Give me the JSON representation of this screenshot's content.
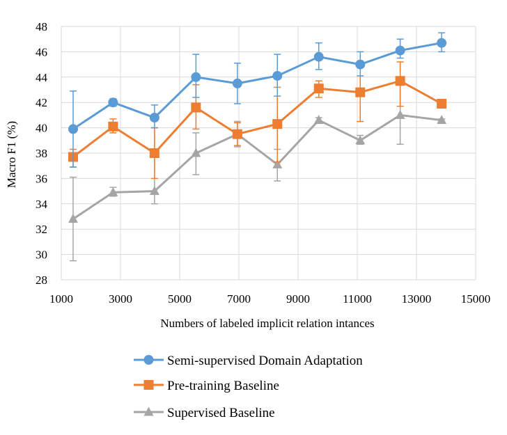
{
  "chart_data": {
    "type": "line",
    "title": "",
    "xlabel": "Numbers of labeled implicit relation intances",
    "ylabel": "Macro F1 (%)",
    "xlim": [
      1000,
      15000
    ],
    "ylim": [
      28,
      48
    ],
    "xticks": [
      1000,
      3000,
      5000,
      7000,
      9000,
      11000,
      13000,
      15000
    ],
    "yticks": [
      28,
      30,
      32,
      34,
      36,
      38,
      40,
      42,
      44,
      46,
      48
    ],
    "grid": true,
    "legend_position": "bottom",
    "x": [
      1400,
      2750,
      4150,
      5550,
      6950,
      8300,
      9700,
      11100,
      12450,
      13850
    ],
    "series": [
      {
        "name": "Semi-supervised Domain Adaptation",
        "color": "#5B9BD5",
        "marker": "circle",
        "values": [
          39.9,
          42.0,
          40.8,
          44.0,
          43.5,
          44.1,
          45.6,
          45.0,
          46.1,
          46.7
        ],
        "err_lo": [
          3.0,
          0.3,
          0.8,
          1.6,
          1.6,
          1.6,
          1.0,
          0.9,
          0.6,
          0.7
        ],
        "err_hi": [
          3.0,
          0.3,
          1.0,
          1.8,
          1.6,
          1.7,
          1.1,
          1.0,
          0.9,
          0.8
        ]
      },
      {
        "name": "Pre-training Baseline",
        "color": "#ED7D31",
        "marker": "square",
        "values": [
          37.7,
          40.1,
          38.0,
          41.6,
          39.5,
          40.3,
          43.1,
          42.8,
          43.7,
          41.9
        ],
        "err_lo": [
          0.8,
          0.5,
          2.0,
          1.7,
          0.9,
          3.0,
          0.7,
          2.3,
          2.0,
          0.2
        ],
        "err_hi": [
          0.6,
          0.6,
          2.0,
          1.8,
          0.9,
          2.9,
          0.6,
          2.2,
          1.5,
          0.3
        ]
      },
      {
        "name": "Supervised Baseline",
        "color": "#A5A5A5",
        "marker": "triangle",
        "values": [
          32.8,
          34.9,
          35.0,
          38.0,
          39.5,
          37.1,
          40.6,
          39.0,
          41.0,
          40.6
        ],
        "err_lo": [
          3.3,
          0.3,
          1.0,
          1.7,
          1.0,
          1.3,
          0.2,
          0.3,
          2.3,
          0.1
        ],
        "err_hi": [
          3.3,
          0.4,
          5.0,
          1.6,
          1.0,
          1.2,
          0.2,
          0.4,
          2.4,
          0.1
        ]
      }
    ]
  }
}
